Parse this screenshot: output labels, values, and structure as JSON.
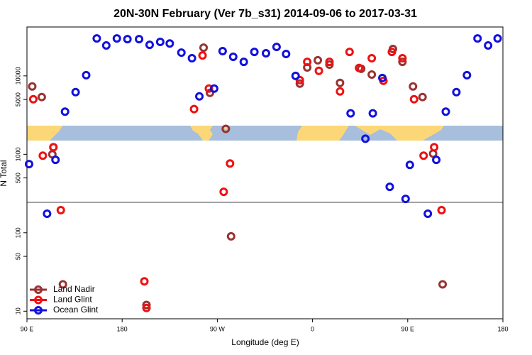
{
  "chart_data": {
    "type": "scatter",
    "title": "20N-30N February (Ver 7b_s31)   2014-09-06 to 2017-03-31",
    "xlabel": "Longitude (deg E)",
    "ylabel": "N Total",
    "xlim": [
      90,
      540
    ],
    "xticks": [
      {
        "value": 90,
        "label": "90 E"
      },
      180,
      {
        "value": 270,
        "label": "90 W"
      },
      {
        "value": 360,
        "label": "0"
      },
      {
        "value": 450,
        "label": "90 E"
      },
      {
        "value": 540,
        "label": "180"
      }
    ],
    "ylog": true,
    "ylim": [
      8,
      42000
    ],
    "yticks": [
      10,
      50,
      100,
      500,
      1000,
      5000,
      10000
    ],
    "legend": "lower left",
    "series": [
      {
        "name": "Land Nadir",
        "color": "#993333",
        "x": [
          95,
          104,
          114,
          115,
          124,
          203,
          257,
          263,
          278,
          283,
          348,
          355,
          365,
          376,
          386,
          406,
          416,
          436,
          445,
          455,
          464,
          474,
          483
        ],
        "values": [
          7330,
          5370,
          1000,
          1230,
          22,
          12,
          22900,
          6080,
          2110,
          90,
          7960,
          12800,
          15800,
          13900,
          8130,
          12300,
          10400,
          22000,
          15100,
          7330,
          5370,
          1020,
          22
        ]
      },
      {
        "name": "Land Glint",
        "color": "#ee1111",
        "x": [
          96,
          105,
          115,
          122,
          201,
          203,
          248,
          256,
          262,
          276,
          282,
          348,
          355,
          366,
          376,
          386,
          395,
          404,
          416,
          427,
          435,
          445,
          456,
          465,
          475,
          482
        ],
        "values": [
          5040,
          960,
          1230,
          194,
          24,
          11,
          3770,
          18200,
          6890,
          333,
          764,
          8830,
          15100,
          11600,
          15100,
          6340,
          20200,
          12600,
          16800,
          8650,
          20200,
          16800,
          5040,
          960,
          1230,
          194
        ]
      },
      {
        "name": "Ocean Glint",
        "color": "#1111dd",
        "x": [
          92,
          109,
          117,
          126,
          136,
          146,
          156,
          165,
          175,
          185,
          196,
          206,
          216,
          225,
          236,
          246,
          253,
          267,
          275,
          285,
          295,
          305,
          316,
          326,
          335,
          344,
          396,
          410,
          417,
          426,
          433,
          448,
          452,
          469,
          477,
          486,
          496,
          506,
          516,
          526,
          535
        ],
        "values": [
          750,
          175,
          850,
          3500,
          6200,
          10200,
          30000,
          24400,
          30000,
          29400,
          29400,
          24900,
          27100,
          25900,
          19800,
          16800,
          5480,
          6890,
          20700,
          17500,
          15100,
          20200,
          19400,
          23400,
          19000,
          10000,
          3330,
          1580,
          3330,
          9400,
          385,
          270,
          733,
          175,
          850,
          3500,
          6200,
          10200,
          30000,
          24400,
          30000
        ]
      }
    ]
  }
}
